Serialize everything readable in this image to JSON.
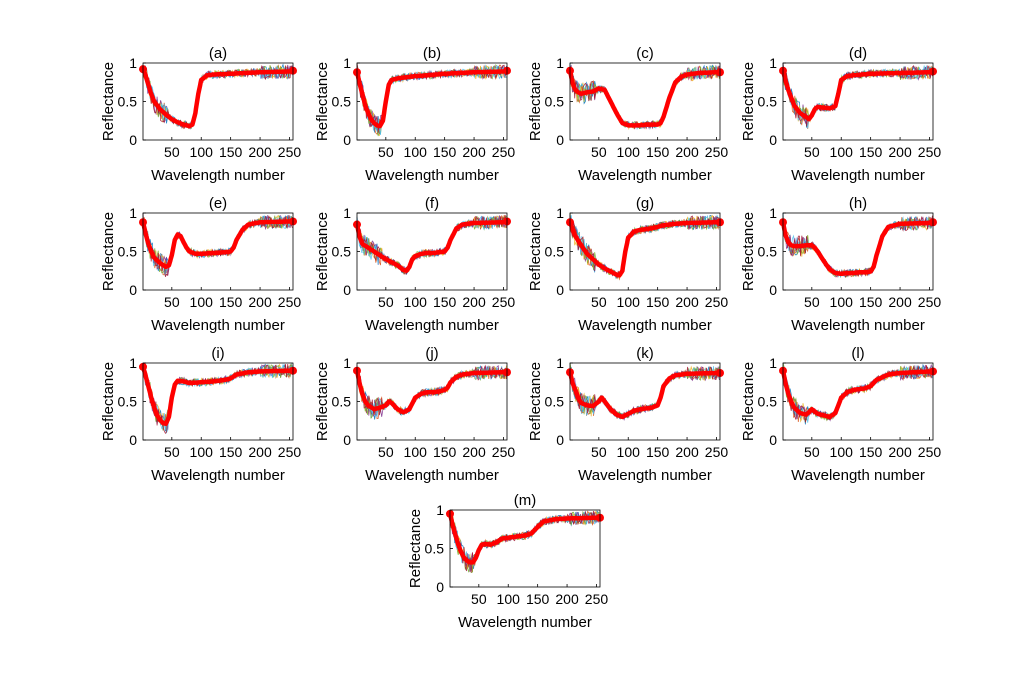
{
  "figure": {
    "colors": {
      "background": "#ffffff",
      "axis": "#000000",
      "mean_curve": "#ff0000",
      "spectra": [
        "#0072bd",
        "#d95319",
        "#edb120",
        "#7e2f8e",
        "#77ac30",
        "#4dbeee",
        "#a2142f"
      ]
    }
  },
  "chart_data": [
    {
      "type": "line",
      "title": "(a)",
      "xlabel": "Wavelength number",
      "ylabel": "Reflectance",
      "xlim": [
        1,
        256
      ],
      "ylim": [
        0,
        1
      ],
      "xticks": [
        50,
        100,
        150,
        200,
        250
      ],
      "yticks": [
        0,
        0.5,
        1
      ],
      "ytick_labels": [
        "0",
        "0.5",
        "1"
      ],
      "mean": {
        "x": [
          1,
          5,
          10,
          15,
          20,
          30,
          40,
          50,
          60,
          70,
          80,
          85,
          90,
          95,
          100,
          110,
          120,
          150,
          200,
          250,
          256
        ],
        "y": [
          0.92,
          0.85,
          0.72,
          0.6,
          0.5,
          0.4,
          0.33,
          0.27,
          0.23,
          0.2,
          0.18,
          0.2,
          0.35,
          0.6,
          0.78,
          0.84,
          0.85,
          0.86,
          0.88,
          0.89,
          0.9
        ]
      }
    },
    {
      "type": "line",
      "title": "(b)",
      "xlabel": "Wavelength number",
      "ylabel": "Reflectance",
      "xlim": [
        1,
        256
      ],
      "ylim": [
        0,
        1
      ],
      "xticks": [
        50,
        100,
        150,
        200,
        250
      ],
      "yticks": [
        0,
        0.5,
        1
      ],
      "ytick_labels": [
        "0",
        "0.5",
        "1"
      ],
      "mean": {
        "x": [
          1,
          5,
          10,
          15,
          20,
          25,
          30,
          35,
          40,
          45,
          50,
          55,
          60,
          70,
          80,
          100,
          120,
          150,
          200,
          250,
          256
        ],
        "y": [
          0.88,
          0.75,
          0.6,
          0.45,
          0.35,
          0.27,
          0.22,
          0.19,
          0.18,
          0.25,
          0.5,
          0.72,
          0.78,
          0.8,
          0.81,
          0.83,
          0.84,
          0.86,
          0.88,
          0.89,
          0.9
        ]
      }
    },
    {
      "type": "line",
      "title": "(c)",
      "xlabel": "Wavelength number",
      "ylabel": "Reflectance",
      "xlim": [
        1,
        256
      ],
      "ylim": [
        0,
        1
      ],
      "xticks": [
        50,
        100,
        150,
        200,
        250
      ],
      "yticks": [
        0,
        0.5,
        1
      ],
      "ytick_labels": [
        "0",
        "0.5",
        "1"
      ],
      "mean": {
        "x": [
          1,
          5,
          10,
          15,
          20,
          30,
          40,
          50,
          60,
          70,
          80,
          90,
          100,
          110,
          120,
          130,
          140,
          150,
          155,
          160,
          170,
          180,
          190,
          200,
          220,
          250,
          256
        ],
        "y": [
          0.9,
          0.75,
          0.65,
          0.62,
          0.6,
          0.62,
          0.63,
          0.67,
          0.65,
          0.5,
          0.35,
          0.22,
          0.19,
          0.19,
          0.19,
          0.2,
          0.2,
          0.2,
          0.22,
          0.3,
          0.55,
          0.75,
          0.82,
          0.85,
          0.87,
          0.88,
          0.88
        ]
      }
    },
    {
      "type": "line",
      "title": "(d)",
      "xlabel": "Wavelength number",
      "ylabel": "Reflectance",
      "xlim": [
        1,
        256
      ],
      "ylim": [
        0,
        1
      ],
      "xticks": [
        50,
        100,
        150,
        200,
        250
      ],
      "yticks": [
        0,
        0.5,
        1
      ],
      "ytick_labels": [
        "0",
        "0.5",
        "1"
      ],
      "mean": {
        "x": [
          1,
          5,
          10,
          15,
          20,
          30,
          40,
          45,
          50,
          55,
          60,
          70,
          80,
          90,
          95,
          100,
          110,
          120,
          150,
          200,
          250,
          256
        ],
        "y": [
          0.9,
          0.78,
          0.65,
          0.55,
          0.45,
          0.35,
          0.3,
          0.27,
          0.32,
          0.4,
          0.43,
          0.42,
          0.41,
          0.44,
          0.6,
          0.78,
          0.83,
          0.84,
          0.86,
          0.87,
          0.88,
          0.89
        ]
      }
    },
    {
      "type": "line",
      "title": "(e)",
      "xlabel": "Wavelength number",
      "ylabel": "Reflectance",
      "xlim": [
        1,
        256
      ],
      "ylim": [
        0,
        1
      ],
      "xticks": [
        50,
        100,
        150,
        200,
        250
      ],
      "yticks": [
        0,
        0.5,
        1
      ],
      "ytick_labels": [
        "0",
        "0.5",
        "1"
      ],
      "mean": {
        "x": [
          1,
          5,
          10,
          15,
          20,
          30,
          40,
          45,
          50,
          55,
          60,
          65,
          70,
          75,
          80,
          90,
          100,
          120,
          140,
          150,
          155,
          160,
          170,
          180,
          200,
          250,
          256
        ],
        "y": [
          0.88,
          0.75,
          0.6,
          0.5,
          0.42,
          0.35,
          0.3,
          0.32,
          0.45,
          0.65,
          0.72,
          0.7,
          0.62,
          0.55,
          0.5,
          0.47,
          0.47,
          0.48,
          0.49,
          0.5,
          0.55,
          0.65,
          0.78,
          0.85,
          0.88,
          0.89,
          0.89
        ]
      }
    },
    {
      "type": "line",
      "title": "(f)",
      "xlabel": "Wavelength number",
      "ylabel": "Reflectance",
      "xlim": [
        1,
        256
      ],
      "ylim": [
        0,
        1
      ],
      "xticks": [
        50,
        100,
        150,
        200,
        250
      ],
      "yticks": [
        0,
        0.5,
        1
      ],
      "ytick_labels": [
        "0",
        "0.5",
        "1"
      ],
      "mean": {
        "x": [
          1,
          5,
          10,
          20,
          30,
          40,
          50,
          60,
          70,
          80,
          85,
          90,
          95,
          100,
          110,
          120,
          130,
          140,
          150,
          155,
          160,
          170,
          180,
          200,
          250,
          256
        ],
        "y": [
          0.85,
          0.7,
          0.6,
          0.55,
          0.5,
          0.45,
          0.4,
          0.36,
          0.32,
          0.26,
          0.25,
          0.3,
          0.4,
          0.44,
          0.47,
          0.48,
          0.48,
          0.49,
          0.5,
          0.55,
          0.65,
          0.8,
          0.85,
          0.87,
          0.88,
          0.89
        ]
      }
    },
    {
      "type": "line",
      "title": "(g)",
      "xlabel": "Wavelength number",
      "ylabel": "Reflectance",
      "xlim": [
        1,
        256
      ],
      "ylim": [
        0,
        1
      ],
      "xticks": [
        50,
        100,
        150,
        200,
        250
      ],
      "yticks": [
        0,
        0.5,
        1
      ],
      "ytick_labels": [
        "0",
        "0.5",
        "1"
      ],
      "mean": {
        "x": [
          1,
          5,
          10,
          20,
          30,
          40,
          50,
          60,
          70,
          80,
          85,
          90,
          95,
          100,
          110,
          120,
          140,
          150,
          160,
          180,
          200,
          250,
          256
        ],
        "y": [
          0.88,
          0.8,
          0.7,
          0.58,
          0.47,
          0.4,
          0.33,
          0.28,
          0.24,
          0.2,
          0.19,
          0.25,
          0.5,
          0.68,
          0.76,
          0.78,
          0.8,
          0.82,
          0.84,
          0.86,
          0.87,
          0.88,
          0.88
        ]
      }
    },
    {
      "type": "line",
      "title": "(h)",
      "xlabel": "Wavelength number",
      "ylabel": "Reflectance",
      "xlim": [
        1,
        256
      ],
      "ylim": [
        0,
        1
      ],
      "xticks": [
        50,
        100,
        150,
        200,
        250
      ],
      "yticks": [
        0,
        0.5,
        1
      ],
      "ytick_labels": [
        "0",
        "0.5",
        "1"
      ],
      "mean": {
        "x": [
          1,
          5,
          10,
          15,
          20,
          30,
          40,
          50,
          55,
          60,
          70,
          80,
          90,
          100,
          110,
          120,
          130,
          140,
          150,
          155,
          160,
          170,
          180,
          200,
          250,
          256
        ],
        "y": [
          0.88,
          0.72,
          0.62,
          0.58,
          0.57,
          0.57,
          0.58,
          0.58,
          0.55,
          0.5,
          0.38,
          0.27,
          0.22,
          0.21,
          0.22,
          0.22,
          0.23,
          0.23,
          0.24,
          0.3,
          0.45,
          0.7,
          0.82,
          0.86,
          0.87,
          0.88
        ]
      }
    },
    {
      "type": "line",
      "title": "(i)",
      "xlabel": "Wavelength number",
      "ylabel": "Reflectance",
      "xlim": [
        1,
        256
      ],
      "ylim": [
        0,
        1
      ],
      "xticks": [
        50,
        100,
        150,
        200,
        250
      ],
      "yticks": [
        0,
        0.5,
        1
      ],
      "ytick_labels": [
        "0",
        "0.5",
        "1"
      ],
      "mean": {
        "x": [
          1,
          5,
          10,
          15,
          20,
          25,
          30,
          35,
          40,
          45,
          50,
          55,
          60,
          70,
          80,
          100,
          120,
          140,
          150,
          160,
          180,
          200,
          250,
          256
        ],
        "y": [
          0.95,
          0.85,
          0.7,
          0.55,
          0.42,
          0.32,
          0.26,
          0.22,
          0.21,
          0.3,
          0.55,
          0.72,
          0.77,
          0.76,
          0.74,
          0.75,
          0.76,
          0.78,
          0.8,
          0.85,
          0.88,
          0.89,
          0.9,
          0.9
        ]
      }
    },
    {
      "type": "line",
      "title": "(j)",
      "xlabel": "Wavelength number",
      "ylabel": "Reflectance",
      "xlim": [
        1,
        256
      ],
      "ylim": [
        0,
        1
      ],
      "xticks": [
        50,
        100,
        150,
        200,
        250
      ],
      "yticks": [
        0,
        0.5,
        1
      ],
      "ytick_labels": [
        "0",
        "0.5",
        "1"
      ],
      "mean": {
        "x": [
          1,
          5,
          10,
          15,
          20,
          30,
          40,
          50,
          55,
          60,
          70,
          80,
          90,
          100,
          110,
          120,
          130,
          140,
          150,
          155,
          160,
          170,
          180,
          200,
          250,
          256
        ],
        "y": [
          0.9,
          0.75,
          0.6,
          0.5,
          0.45,
          0.4,
          0.42,
          0.45,
          0.5,
          0.48,
          0.4,
          0.36,
          0.4,
          0.55,
          0.6,
          0.62,
          0.62,
          0.63,
          0.65,
          0.68,
          0.75,
          0.82,
          0.85,
          0.87,
          0.88,
          0.88
        ]
      }
    },
    {
      "type": "line",
      "title": "(k)",
      "xlabel": "Wavelength number",
      "ylabel": "Reflectance",
      "xlim": [
        1,
        256
      ],
      "ylim": [
        0,
        1
      ],
      "xticks": [
        50,
        100,
        150,
        200,
        250
      ],
      "yticks": [
        0,
        0.5,
        1
      ],
      "ytick_labels": [
        "0",
        "0.5",
        "1"
      ],
      "mean": {
        "x": [
          1,
          5,
          10,
          15,
          20,
          30,
          40,
          50,
          55,
          60,
          70,
          80,
          90,
          100,
          110,
          120,
          130,
          140,
          150,
          155,
          160,
          170,
          180,
          200,
          250,
          256
        ],
        "y": [
          0.88,
          0.75,
          0.65,
          0.55,
          0.48,
          0.45,
          0.44,
          0.5,
          0.55,
          0.5,
          0.4,
          0.33,
          0.3,
          0.34,
          0.38,
          0.4,
          0.41,
          0.42,
          0.45,
          0.55,
          0.7,
          0.8,
          0.84,
          0.86,
          0.87,
          0.87
        ]
      }
    },
    {
      "type": "line",
      "title": "(l)",
      "xlabel": "Wavelength number",
      "ylabel": "Reflectance",
      "xlim": [
        1,
        256
      ],
      "ylim": [
        0,
        1
      ],
      "xticks": [
        50,
        100,
        150,
        200,
        250
      ],
      "yticks": [
        0,
        0.5,
        1
      ],
      "ytick_labels": [
        "0",
        "0.5",
        "1"
      ],
      "mean": {
        "x": [
          1,
          5,
          10,
          15,
          20,
          30,
          40,
          45,
          50,
          55,
          60,
          70,
          80,
          90,
          100,
          110,
          120,
          130,
          140,
          150,
          160,
          180,
          200,
          250,
          256
        ],
        "y": [
          0.9,
          0.75,
          0.6,
          0.5,
          0.42,
          0.35,
          0.33,
          0.36,
          0.4,
          0.37,
          0.34,
          0.32,
          0.3,
          0.35,
          0.55,
          0.62,
          0.65,
          0.66,
          0.67,
          0.7,
          0.78,
          0.85,
          0.87,
          0.89,
          0.89
        ]
      }
    },
    {
      "type": "line",
      "title": "(m)",
      "xlabel": "Wavelength number",
      "ylabel": "Reflectance",
      "xlim": [
        1,
        256
      ],
      "ylim": [
        0,
        1
      ],
      "xticks": [
        50,
        100,
        150,
        200,
        250
      ],
      "yticks": [
        0,
        0.5,
        1
      ],
      "ytick_labels": [
        "0",
        "0.5",
        "1"
      ],
      "mean": {
        "x": [
          1,
          5,
          10,
          15,
          20,
          25,
          30,
          35,
          40,
          45,
          50,
          55,
          60,
          70,
          80,
          90,
          100,
          110,
          120,
          130,
          140,
          150,
          160,
          180,
          200,
          250,
          256
        ],
        "y": [
          0.95,
          0.82,
          0.68,
          0.55,
          0.45,
          0.38,
          0.34,
          0.32,
          0.32,
          0.38,
          0.48,
          0.55,
          0.56,
          0.55,
          0.58,
          0.63,
          0.64,
          0.65,
          0.66,
          0.67,
          0.7,
          0.78,
          0.85,
          0.88,
          0.89,
          0.9,
          0.9
        ]
      }
    }
  ]
}
